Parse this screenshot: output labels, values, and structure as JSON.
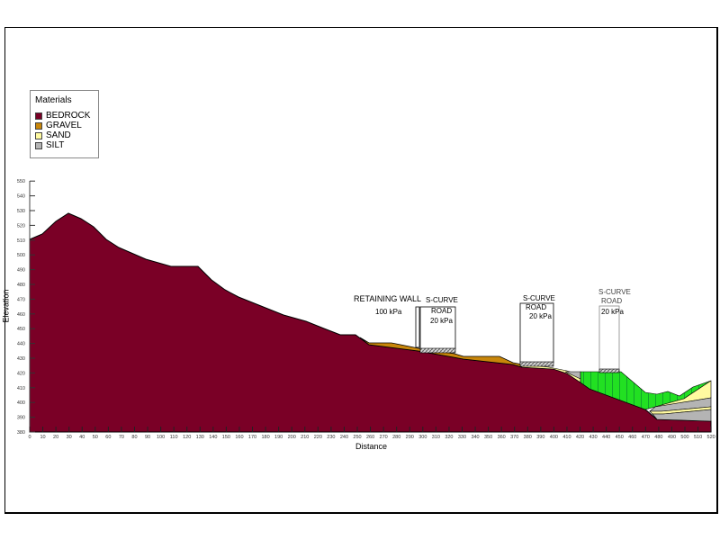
{
  "legend": {
    "title": "Materials",
    "items": [
      {
        "label": "BEDROCK",
        "color": "#7a0026"
      },
      {
        "label": "GRAVEL",
        "color": "#c8860a"
      },
      {
        "label": "SAND",
        "color": "#fffaa0"
      },
      {
        "label": "SILT",
        "color": "#b4b4b4"
      }
    ]
  },
  "axes": {
    "xlabel": "Distance",
    "ylabel": "Elevation",
    "xticks": [
      "0",
      "10",
      "20",
      "30",
      "40",
      "50",
      "60",
      "70",
      "80",
      "90",
      "100",
      "110",
      "120",
      "130",
      "140",
      "150",
      "160",
      "170",
      "180",
      "190",
      "200",
      "210",
      "220",
      "230",
      "240",
      "250",
      "260",
      "270",
      "280",
      "290",
      "300",
      "310",
      "320",
      "330",
      "340",
      "350",
      "360",
      "370",
      "380",
      "390",
      "400",
      "410",
      "420",
      "430",
      "440",
      "450",
      "460",
      "470",
      "480",
      "490",
      "500",
      "510",
      "520"
    ],
    "yticks": [
      "380",
      "390",
      "400",
      "410",
      "420",
      "430",
      "440",
      "450",
      "460",
      "470",
      "480",
      "490",
      "500",
      "510",
      "520",
      "530",
      "540",
      "550"
    ]
  },
  "annotations": [
    {
      "id": "retaining-wall",
      "title": "RETAINING WALL",
      "load": "100 kPa"
    },
    {
      "id": "road-1",
      "title": "S-CURVE",
      "subtitle": "ROAD",
      "load": "20 kPa"
    },
    {
      "id": "road-2",
      "title": "S-CURVE",
      "subtitle": "ROAD",
      "load": "20 kPa"
    },
    {
      "id": "road-3",
      "title": "S-CURVE",
      "subtitle": "ROAD",
      "load": "20 kPa"
    }
  ],
  "colors": {
    "bedrock": "#7a0026",
    "gravel": "#c8860a",
    "sand": "#fffaa0",
    "silt": "#b4b4b4",
    "fill_zone": "#22e022"
  }
}
